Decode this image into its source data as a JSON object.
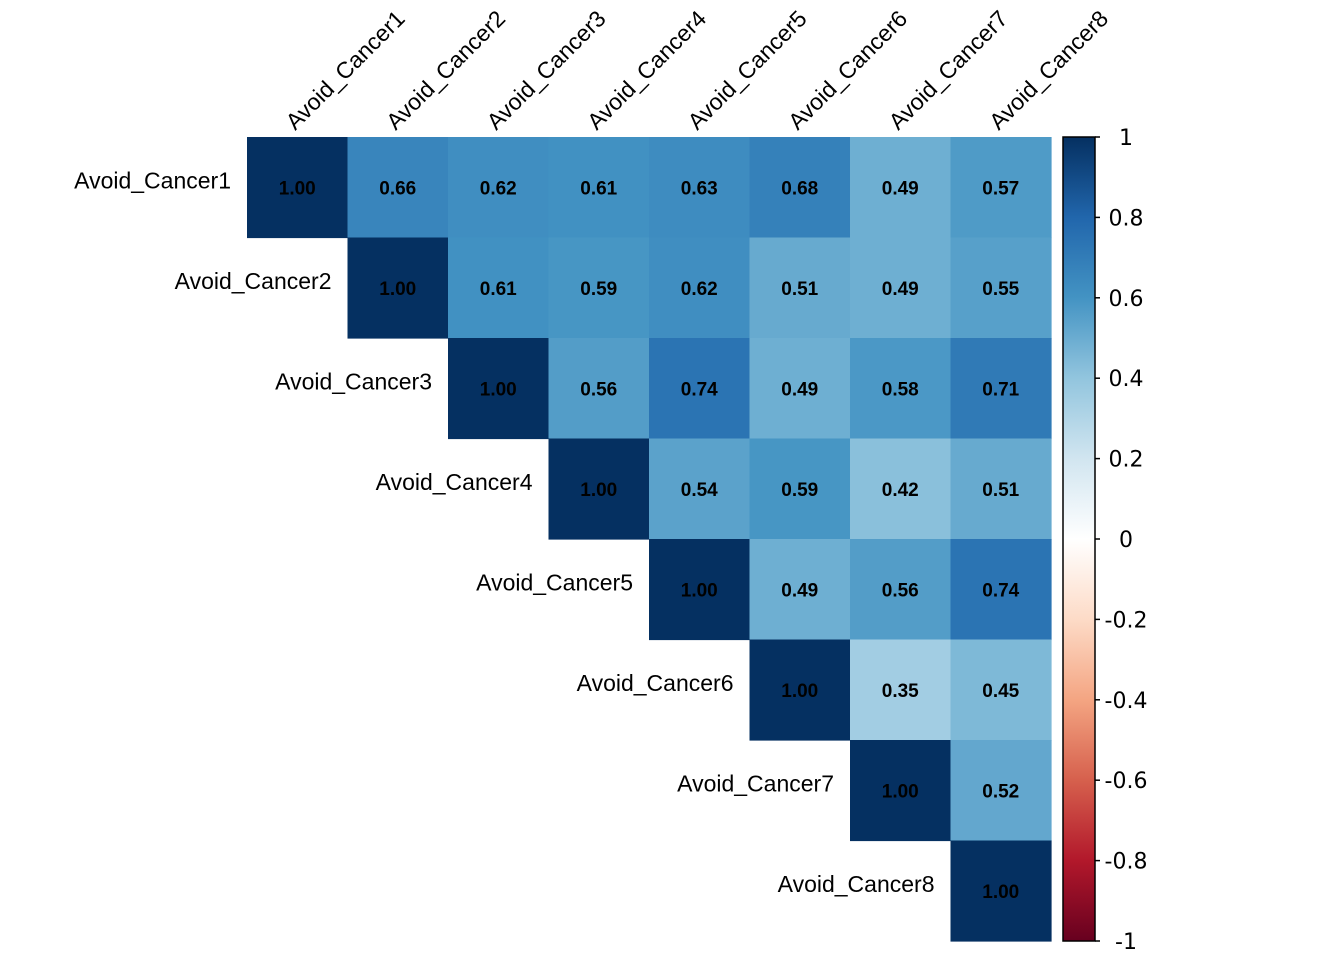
{
  "chart_data": {
    "type": "heatmap",
    "subtype": "correlation-matrix-upper",
    "variables": [
      "Avoid_Cancer1",
      "Avoid_Cancer2",
      "Avoid_Cancer3",
      "Avoid_Cancer4",
      "Avoid_Cancer5",
      "Avoid_Cancer6",
      "Avoid_Cancer7",
      "Avoid_Cancer8"
    ],
    "matrix": [
      [
        1.0,
        0.66,
        0.62,
        0.61,
        0.63,
        0.68,
        0.49,
        0.57
      ],
      [
        null,
        1.0,
        0.61,
        0.59,
        0.62,
        0.51,
        0.49,
        0.55
      ],
      [
        null,
        null,
        1.0,
        0.56,
        0.74,
        0.49,
        0.58,
        0.71
      ],
      [
        null,
        null,
        null,
        1.0,
        0.54,
        0.59,
        0.42,
        0.51
      ],
      [
        null,
        null,
        null,
        null,
        1.0,
        0.49,
        0.56,
        0.74
      ],
      [
        null,
        null,
        null,
        null,
        null,
        1.0,
        0.35,
        0.45
      ],
      [
        null,
        null,
        null,
        null,
        null,
        null,
        1.0,
        0.52
      ],
      [
        null,
        null,
        null,
        null,
        null,
        null,
        null,
        1.0
      ]
    ],
    "value_format_decimals": 2,
    "colorbar": {
      "range": [
        -1,
        1
      ],
      "ticks": [
        "1",
        "0.8",
        "0.6",
        "0.4",
        "0.2",
        "0",
        "-0.2",
        "-0.4",
        "-0.6",
        "-0.8",
        "-1"
      ],
      "tick_values": [
        1,
        0.8,
        0.6,
        0.4,
        0.2,
        0,
        -0.2,
        -0.4,
        -0.6,
        -0.8,
        -1
      ],
      "colors": [
        "#67001F",
        "#B2182B",
        "#D6604D",
        "#F4A582",
        "#FDDBC7",
        "#FFFFFF",
        "#D1E5F0",
        "#92C5DE",
        "#4393C3",
        "#2166AC",
        "#053061"
      ],
      "position": "right"
    },
    "grid": false
  }
}
